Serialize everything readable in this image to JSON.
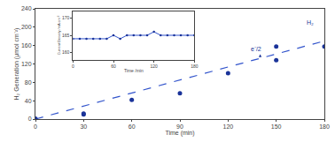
{
  "chart_data": [
    {
      "type": "scatter",
      "xlabel": "Time (min)",
      "ylabel": "H₂ Generation (μmol cm⁻²)",
      "xlim": [
        0,
        180
      ],
      "ylim": [
        0,
        240
      ],
      "xticks": [
        0,
        30,
        60,
        90,
        120,
        150,
        180
      ],
      "yticks": [
        0,
        40,
        80,
        120,
        160,
        200,
        240
      ],
      "grid": false,
      "series": [
        {
          "type": "line",
          "line_style": "dashed",
          "color": "#3355cc",
          "x": [
            0,
            180
          ],
          "values": [
            0,
            170
          ]
        },
        {
          "type": "scatter",
          "marker": "circle",
          "color": "#1a3399",
          "x": [
            0,
            30,
            30,
            60,
            90,
            120,
            150,
            150,
            180
          ],
          "values": [
            1,
            10,
            12,
            42,
            56,
            100,
            128,
            158,
            158
          ]
        }
      ],
      "annotations": [
        {
          "text": "H₂",
          "x": 168,
          "y": 210,
          "color": "#1a3399"
        },
        {
          "text": "e⁻/2",
          "x": 133,
          "y": 152,
          "color": "#1a3399",
          "arrow": {
            "x": 140,
            "y": 141,
            "from_x": 140,
            "from_y": 133
          }
        }
      ]
    },
    {
      "type": "line",
      "xlabel": "Time /min",
      "ylabel": "Current Density /mA cm⁻²",
      "xlim": [
        0,
        180
      ],
      "ylim": [
        158,
        172
      ],
      "xticks": [
        0,
        60,
        120,
        180
      ],
      "yticks": [
        160,
        165,
        170
      ],
      "grid": false,
      "series": [
        {
          "type": "line",
          "color": "#3355cc",
          "x": [
            0,
            10,
            20,
            30,
            40,
            50,
            60,
            70,
            80,
            90,
            100,
            110,
            120,
            130,
            140,
            150,
            160,
            170,
            180
          ],
          "values": [
            164,
            164,
            164,
            164,
            164,
            164,
            165,
            164,
            165,
            165,
            165,
            165,
            166,
            165,
            165,
            165,
            165,
            165,
            165
          ]
        },
        {
          "type": "scatter",
          "marker": "circle",
          "color": "#1a3399",
          "x": [
            0,
            10,
            20,
            30,
            40,
            50,
            60,
            70,
            80,
            90,
            100,
            110,
            120,
            130,
            140,
            150,
            160,
            170,
            180
          ],
          "values": [
            164,
            164,
            164,
            164,
            164,
            164,
            165,
            164,
            165,
            165,
            165,
            165,
            166,
            165,
            165,
            165,
            165,
            165,
            165
          ]
        }
      ]
    }
  ]
}
